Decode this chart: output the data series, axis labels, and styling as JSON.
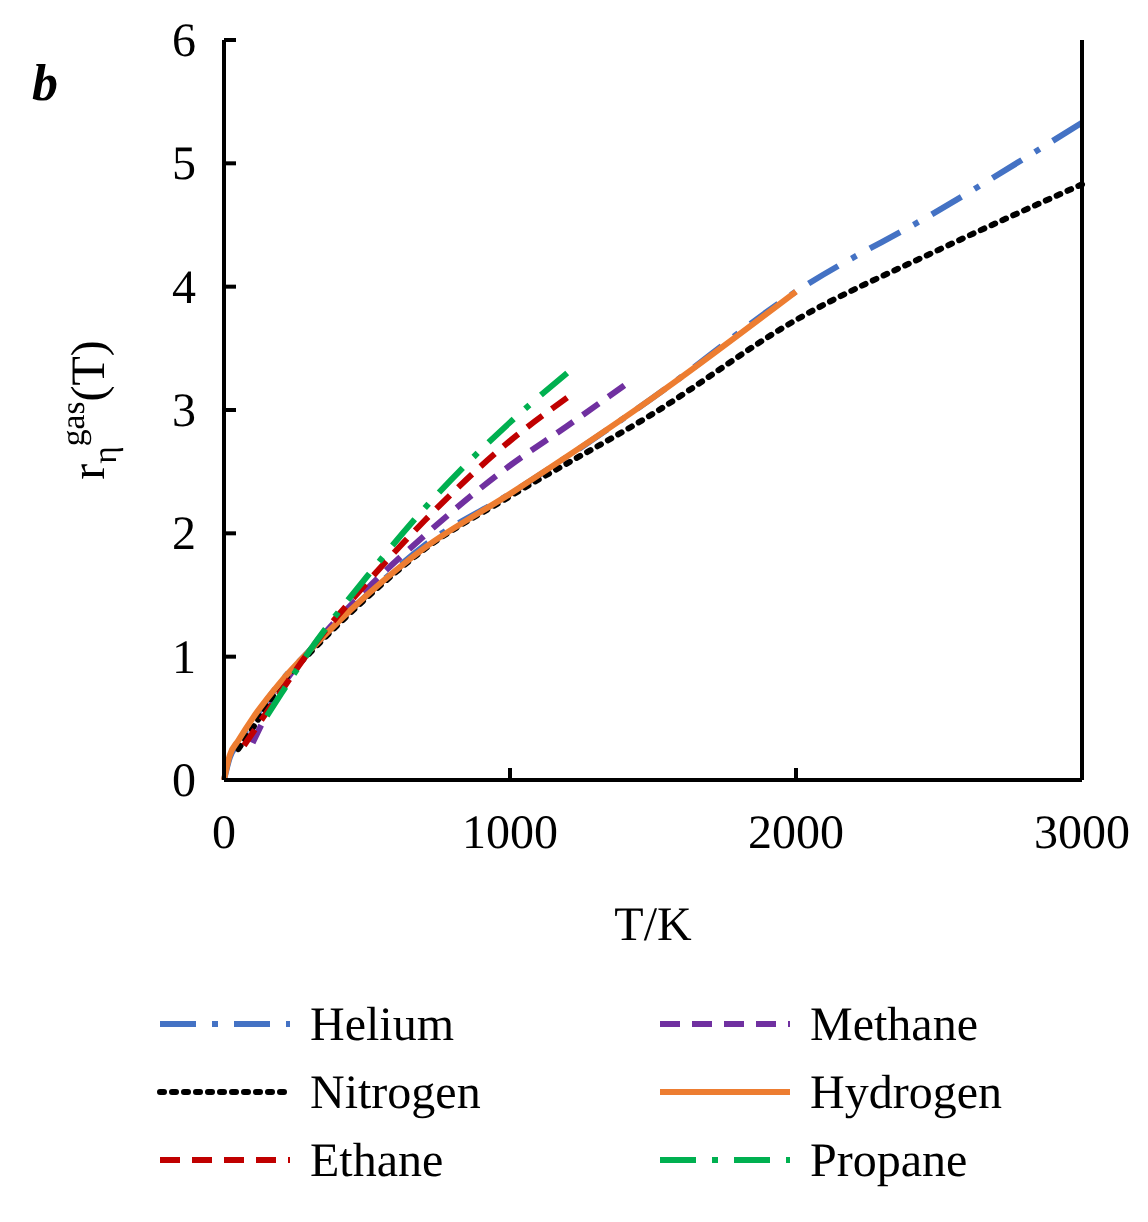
{
  "chart_data": {
    "type": "line",
    "title": "b",
    "xlabel": "T/K",
    "ylabel": "r$_{η}$$^{gas}$(T)",
    "xlim": [
      0,
      3000
    ],
    "ylim": [
      0,
      6
    ],
    "xticks": [
      0,
      1000,
      2000,
      3000
    ],
    "yticks": [
      0,
      1,
      2,
      3,
      4,
      5,
      6
    ],
    "grid": false,
    "legend": "bottom",
    "series": [
      {
        "name": "Helium",
        "color": "#4472c4",
        "line_style": "dashdot",
        "x": [
          0,
          20,
          50,
          100,
          200,
          300,
          500,
          700,
          1000,
          1500,
          2000,
          2500,
          3000
        ],
        "values": [
          0,
          0.18,
          0.3,
          0.48,
          0.8,
          1.05,
          1.5,
          1.9,
          2.32,
          3.1,
          3.96,
          4.62,
          5.33
        ]
      },
      {
        "name": "Methane",
        "color": "#7030a0",
        "line_style": "dashed",
        "x": [
          100,
          200,
          300,
          500,
          700,
          1000,
          1200,
          1400
        ],
        "values": [
          0.3,
          0.75,
          1.05,
          1.55,
          1.98,
          2.55,
          2.87,
          3.2
        ]
      },
      {
        "name": "Nitrogen",
        "color": "#000000",
        "line_style": "dotted",
        "x": [
          50,
          100,
          200,
          300,
          500,
          700,
          1000,
          1500,
          2000,
          2500,
          3000
        ],
        "values": [
          0.25,
          0.42,
          0.78,
          1.03,
          1.48,
          1.87,
          2.3,
          2.97,
          3.73,
          4.3,
          4.83
        ]
      },
      {
        "name": "Hydrogen",
        "color": "#ed7d31",
        "line_style": "solid",
        "x": [
          0,
          20,
          50,
          100,
          200,
          300,
          500,
          700,
          1000,
          1500,
          2000
        ],
        "values": [
          0,
          0.2,
          0.32,
          0.5,
          0.8,
          1.05,
          1.5,
          1.88,
          2.32,
          3.1,
          3.96
        ]
      },
      {
        "name": "Ethane",
        "color": "#c00000",
        "line_style": "dashed",
        "x": [
          70,
          200,
          300,
          500,
          700,
          1000,
          1200
        ],
        "values": [
          0.28,
          0.72,
          1.05,
          1.6,
          2.1,
          2.75,
          3.1
        ]
      },
      {
        "name": "Propane",
        "color": "#00b050",
        "line_style": "dashdot",
        "x": [
          150,
          200,
          300,
          500,
          700,
          1000,
          1200
        ],
        "values": [
          0.52,
          0.7,
          1.05,
          1.65,
          2.2,
          2.9,
          3.3
        ]
      }
    ]
  }
}
